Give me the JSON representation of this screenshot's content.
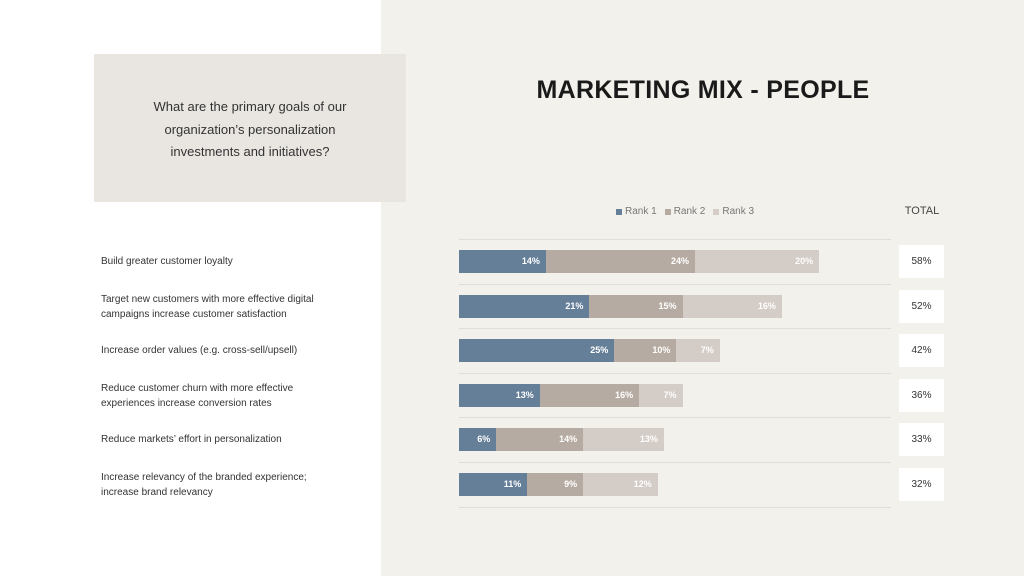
{
  "question": "What are the primary goals of our organization’s personalization investments and initiatives?",
  "title": "MARKETING MIX - PEOPLE",
  "total_header": "TOTAL",
  "colors": {
    "rank1": "#657f99",
    "rank2": "#b6aba2",
    "rank3": "#d4ccc7"
  },
  "chart_data": {
    "type": "bar",
    "orientation": "horizontal",
    "stacked": true,
    "legend_position": "top",
    "categories": [
      "Build greater customer loyalty",
      "Target new customers with more effective digital campaigns increase customer satisfaction",
      "Increase order values (e.g. cross-sell/upsell)",
      "Reduce customer churn with more effective experiences increase conversion rates",
      "Reduce markets’ effort in personalization",
      "Increase relevancy of the branded experience; increase brand relevancy"
    ],
    "series": [
      {
        "name": "Rank 1",
        "values": [
          14,
          21,
          25,
          13,
          6,
          11
        ]
      },
      {
        "name": "Rank 2",
        "values": [
          24,
          15,
          10,
          16,
          14,
          9
        ]
      },
      {
        "name": "Rank 3",
        "values": [
          20,
          16,
          7,
          7,
          13,
          12
        ]
      }
    ],
    "totals": [
      58,
      52,
      42,
      36,
      33,
      32
    ],
    "value_suffix": "%"
  }
}
